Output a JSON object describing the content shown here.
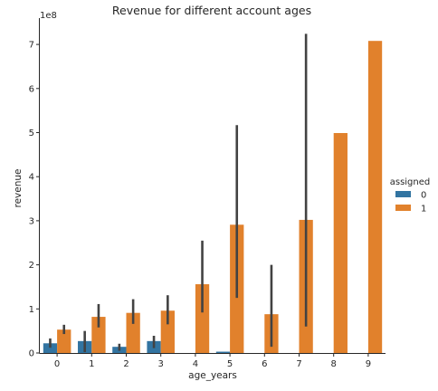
{
  "chart_data": {
    "type": "bar",
    "title": "Revenue for different account ages",
    "xlabel": "age_years",
    "ylabel": "revenue",
    "y_offset_label": "1e8",
    "y_scale": 100000000,
    "categories": [
      "0",
      "1",
      "2",
      "3",
      "4",
      "5",
      "6",
      "7",
      "8",
      "9"
    ],
    "ylim": [
      0,
      7.6
    ],
    "yticks": [
      0,
      1,
      2,
      3,
      4,
      5,
      6,
      7
    ],
    "legend": {
      "title": "assigned",
      "position": "right"
    },
    "series": [
      {
        "name": "0",
        "color": "#3274a1",
        "values": [
          0.22,
          0.27,
          0.14,
          0.27,
          null,
          0.03,
          null,
          null,
          null,
          null
        ],
        "ci": [
          [
            0.12,
            0.33
          ],
          [
            0.02,
            0.5
          ],
          [
            0.05,
            0.21
          ],
          [
            0.11,
            0.39
          ],
          null,
          null,
          null,
          null,
          null,
          null
        ]
      },
      {
        "name": "1",
        "color": "#e1812c",
        "values": [
          0.53,
          0.82,
          0.91,
          0.96,
          1.56,
          2.91,
          0.88,
          3.02,
          4.99,
          7.08
        ],
        "ci": [
          [
            0.43,
            0.64
          ],
          [
            0.58,
            1.11
          ],
          [
            0.66,
            1.22
          ],
          [
            0.65,
            1.31
          ],
          [
            0.92,
            2.55
          ],
          [
            1.25,
            5.17
          ],
          [
            0.14,
            2.0
          ],
          [
            0.6,
            7.24
          ],
          null,
          null
        ]
      }
    ]
  }
}
